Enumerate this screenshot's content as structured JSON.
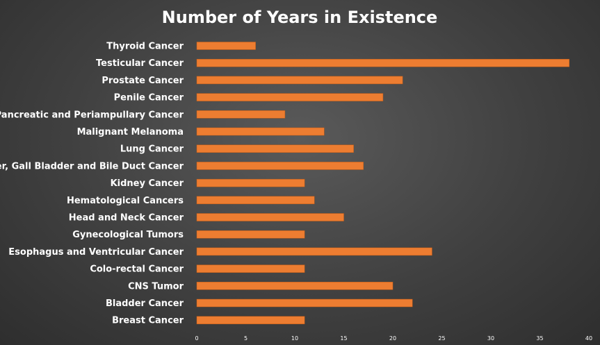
{
  "chart_data": {
    "type": "bar",
    "orientation": "horizontal",
    "title": "Number of Years in Existence",
    "xlabel": "",
    "ylabel": "",
    "xlim": [
      0,
      40
    ],
    "x_ticks": [
      0,
      5,
      10,
      15,
      20,
      25,
      30,
      35,
      40
    ],
    "grid": false,
    "legend": "none",
    "categories": [
      "Thyroid Cancer",
      "Testicular Cancer",
      "Prostate Cancer",
      "Penile Cancer",
      "Pancreatic and Periampullary Cancer",
      "Malignant Melanoma",
      "Lung Cancer",
      "Liver, Gall Bladder and Bile Duct Cancer",
      "Kidney Cancer",
      "Hematological Cancers",
      "Head and Neck Cancer",
      "Gynecological Tumors",
      "Esophagus and Ventricular Cancer",
      "Colo-rectal Cancer",
      "CNS Tumor",
      "Bladder Cancer",
      "Breast Cancer"
    ],
    "values": [
      6,
      38,
      21,
      19,
      9,
      13,
      16,
      17,
      11,
      12,
      15,
      11,
      24,
      11,
      20,
      22,
      11
    ],
    "colors": {
      "bar": "#ed7d31",
      "bar_edge": "#c05a14",
      "text": "#ffffff"
    }
  }
}
